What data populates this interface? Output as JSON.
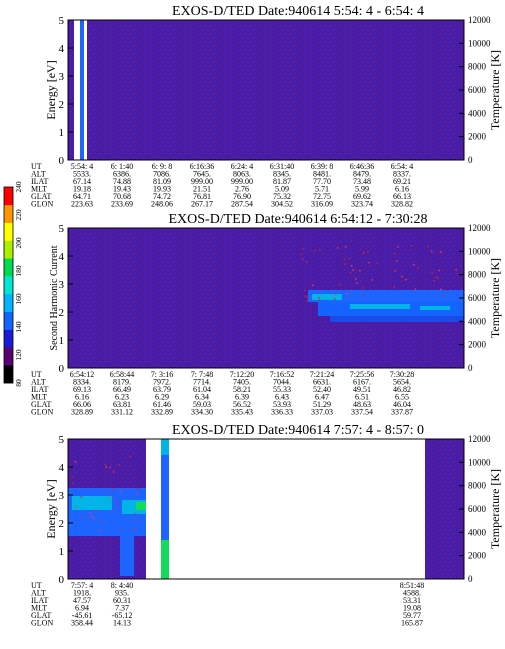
{
  "chart_data": [
    {
      "type": "heatmap",
      "title": "EXOS-D/TED",
      "date_label": "Date:940614",
      "time_range": "5:54: 4 - 6:54: 4",
      "ylabel": "Energy [eV]",
      "y2label": "Temperature [K]",
      "ylim": [
        0,
        5
      ],
      "y2lim": [
        0,
        12000
      ],
      "yticks": [
        "0",
        "1",
        "2",
        "3",
        "4",
        "5"
      ],
      "y2ticks": [
        "0",
        "2000",
        "4000",
        "6000",
        "8000",
        "10000",
        "12000"
      ],
      "ephemeris": [
        {
          "name": "UT",
          "values": [
            "5:54: 4",
            "6: 1:40",
            "6: 9: 8",
            "6:16:36",
            "6:24: 4",
            "6:31:40",
            "6:39: 8",
            "6:46:36",
            "6:54: 4"
          ]
        },
        {
          "name": "ALT",
          "values": [
            "5533.",
            "6386.",
            "7086.",
            "7645.",
            "8063.",
            "8345.",
            "8481.",
            "8479.",
            "8337."
          ]
        },
        {
          "name": "ILAT",
          "values": [
            "67.14",
            "74.88",
            "81.09",
            "999.00",
            "999.00",
            "81.87",
            "77.70",
            "73.48",
            "69.21"
          ]
        },
        {
          "name": "MLT",
          "values": [
            "19.18",
            "19.43",
            "19.93",
            "21.51",
            "2.76",
            "5.09",
            "5.71",
            "5.99",
            "6.16"
          ]
        },
        {
          "name": "GLAT",
          "values": [
            "64.71",
            "70.68",
            "74.72",
            "76.81",
            "76.90",
            "75.32",
            "72.75",
            "69.62",
            "66.13"
          ]
        },
        {
          "name": "GLON",
          "values": [
            "223.63",
            "233.69",
            "248.06",
            "267.17",
            "287.54",
            "304.52",
            "316.09",
            "323.74",
            "328.82"
          ]
        }
      ]
    },
    {
      "type": "heatmap",
      "title": "EXOS-D/TED",
      "date_label": "Date:940614",
      "time_range": "6:54:12 - 7:30:28",
      "ylabel": "Second Harmonic Current",
      "y2label": "Temperature [K]",
      "ylim": [
        0,
        5
      ],
      "y2lim": [
        0,
        12000
      ],
      "yticks": [
        "0",
        "1",
        "2",
        "3",
        "4",
        "5"
      ],
      "y2ticks": [
        "0",
        "2000",
        "4000",
        "6000",
        "8000",
        "10000",
        "12000"
      ],
      "ephemeris": [
        {
          "name": "UT",
          "values": [
            "6:54:12",
            "6:58:44",
            "7: 3:16",
            "7: 7:48",
            "7:12:20",
            "7:16:52",
            "7:21:24",
            "7:25:56",
            "7:30:28"
          ]
        },
        {
          "name": "ALT",
          "values": [
            "8334.",
            "8179.",
            "7972.",
            "7714.",
            "7405.",
            "7044.",
            "6631.",
            "6167.",
            "5654."
          ]
        },
        {
          "name": "ILAT",
          "values": [
            "69.13",
            "66.49",
            "63.79",
            "61.04",
            "58.21",
            "55.33",
            "52.40",
            "49.51",
            "46.82"
          ]
        },
        {
          "name": "MLT",
          "values": [
            "6.16",
            "6.23",
            "6.29",
            "6.34",
            "6.39",
            "6.43",
            "6.47",
            "6.51",
            "6.55"
          ]
        },
        {
          "name": "GLAT",
          "values": [
            "66.06",
            "63.81",
            "61.46",
            "59.03",
            "56.52",
            "53.93",
            "51.29",
            "48.63",
            "46.04"
          ]
        },
        {
          "name": "GLON",
          "values": [
            "328.89",
            "331.12",
            "332.89",
            "334.30",
            "335.43",
            "336.33",
            "337.03",
            "337.54",
            "337.87"
          ]
        }
      ]
    },
    {
      "type": "heatmap",
      "title": "EXOS-D/TED",
      "date_label": "Date:940614",
      "time_range": "7:57: 4 - 8:57: 0",
      "ylabel": "Energy [eV]",
      "y2label": "Temperature [K]",
      "ylim": [
        0,
        5
      ],
      "y2lim": [
        0,
        12000
      ],
      "yticks": [
        "0",
        "1",
        "2",
        "3",
        "4",
        "5"
      ],
      "y2ticks": [
        "0",
        "2000",
        "4000",
        "6000",
        "8000",
        "10000",
        "12000"
      ],
      "ephemeris": [
        {
          "name": "UT",
          "values": [
            "7:57: 4",
            "8: 4:40",
            "8:51:48"
          ]
        },
        {
          "name": "ALT",
          "values": [
            "1918.",
            "935.",
            "4588."
          ]
        },
        {
          "name": "ILAT",
          "values": [
            "47.57",
            "60.31",
            "53.31"
          ]
        },
        {
          "name": "MLT",
          "values": [
            "6.94",
            "7.37",
            "19.08"
          ]
        },
        {
          "name": "GLAT",
          "values": [
            "-45.61",
            "-65.12",
            "59.77"
          ]
        },
        {
          "name": "GLON",
          "values": [
            "358.44",
            "14.13",
            "165.87"
          ]
        }
      ]
    }
  ],
  "colorbar": {
    "ticks": [
      "80",
      "120",
      "140",
      "160",
      "180",
      "200",
      "220",
      "240"
    ],
    "colors": [
      "#000000",
      "#5a0070",
      "#1a1ad8",
      "#1464ff",
      "#00b4ff",
      "#00e6d2",
      "#00dc50",
      "#aaf000",
      "#ffff00",
      "#ff9600",
      "#ff0000"
    ]
  },
  "colors": {
    "background_field": "#4a1ca6",
    "noise_purple": "#6a2496",
    "noise_blue": "#2e2ed2",
    "sparkle_red": "#c82828",
    "band_blue": "#1e64ff",
    "band_cyan": "#00b4e6",
    "gap_white": "#ffffff",
    "band_green": "#14dc5a"
  }
}
